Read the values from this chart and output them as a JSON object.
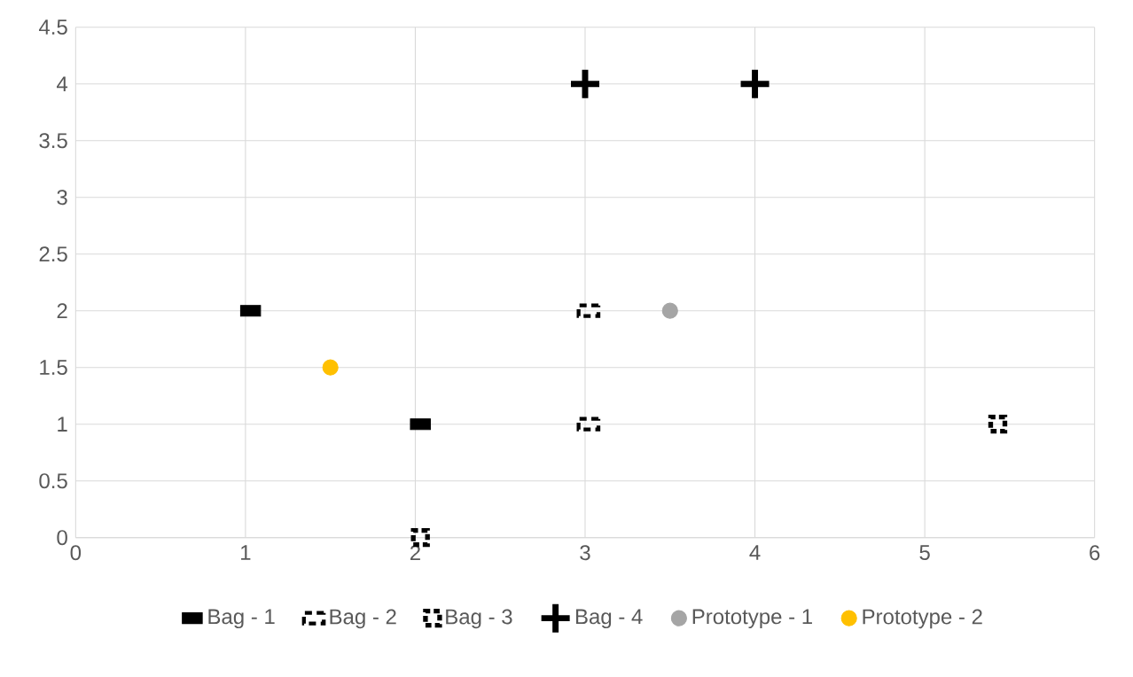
{
  "chart_data": {
    "type": "scatter",
    "xlim": [
      0,
      6
    ],
    "ylim": [
      0,
      4.5
    ],
    "xticks": [
      0,
      1,
      2,
      3,
      4,
      5,
      6
    ],
    "yticks": [
      0,
      0.5,
      1,
      1.5,
      2,
      2.5,
      3,
      3.5,
      4,
      4.5
    ],
    "grid": true,
    "legend": "bottom",
    "series": [
      {
        "name": "Bag - 1",
        "color": "#000000",
        "marker": "square",
        "x": [
          1.03,
          2.03
        ],
        "values": [
          2,
          1
        ]
      },
      {
        "name": "Bag - 2",
        "color": "#000000",
        "marker": "square",
        "line_style": "dashed",
        "x": [
          3.02,
          3.02
        ],
        "values": [
          2,
          1
        ]
      },
      {
        "name": "Bag - 3",
        "color": "#000000",
        "marker": "square",
        "line_style": "dotted",
        "x": [
          2.03,
          5.43
        ],
        "values": [
          0,
          1
        ]
      },
      {
        "name": "Bag - 4",
        "color": "#000000",
        "marker": "cross",
        "x": [
          3.0,
          4.0
        ],
        "values": [
          4,
          4
        ]
      },
      {
        "name": "Prototype - 1",
        "color": "#a5a5a5",
        "marker": "circle",
        "x": [
          3.5
        ],
        "values": [
          2
        ]
      },
      {
        "name": "Prototype - 2",
        "color": "#ffc000",
        "marker": "circle",
        "x": [
          1.5
        ],
        "values": [
          1.5
        ]
      }
    ]
  }
}
